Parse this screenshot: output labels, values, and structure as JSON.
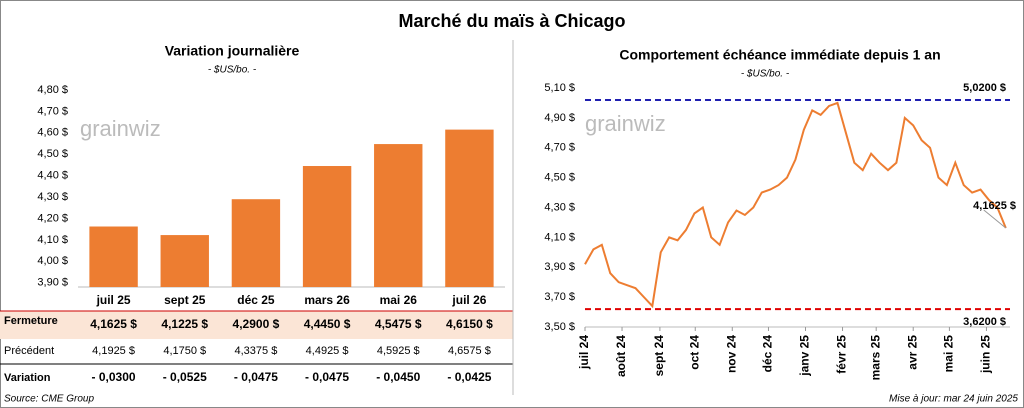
{
  "title": "Marché du maïs à Chicago",
  "chart_data": [
    {
      "type": "bar",
      "title": "Variation journalière",
      "subtitle": "- $US/bo. -",
      "categories": [
        "juil 25",
        "sept 25",
        "déc 25",
        "mars 26",
        "mai 26",
        "juil 26"
      ],
      "values": [
        4.1625,
        4.1225,
        4.29,
        4.445,
        4.5475,
        4.615
      ],
      "value_labels": [
        "4,1625  $",
        "4,1225  $",
        "4,2900  $",
        "4,4450  $",
        "4,5475  $",
        "4,6150  $"
      ],
      "color": "#ed7d31",
      "ylim": [
        3.88,
        4.8
      ],
      "yticks": [
        {
          "value": 3.9,
          "label": "3,90 $"
        },
        {
          "value": 4.0,
          "label": "4,00 $"
        },
        {
          "value": 4.1,
          "label": "4,10 $"
        },
        {
          "value": 4.2,
          "label": "4,20 $"
        },
        {
          "value": 4.3,
          "label": "4,30 $"
        },
        {
          "value": 4.4,
          "label": "4,40 $"
        },
        {
          "value": 4.5,
          "label": "4,50 $"
        },
        {
          "value": 4.6,
          "label": "4,60 $"
        },
        {
          "value": 4.7,
          "label": "4,70 $"
        },
        {
          "value": 4.8,
          "label": "4,80 $"
        }
      ]
    },
    {
      "type": "line",
      "title": "Comportement échéance immédiate depuis 1 an",
      "subtitle": "- $US/bo. -",
      "x": [
        0,
        1,
        2,
        3,
        4,
        5,
        6,
        7,
        8,
        9,
        10,
        11,
        12,
        13,
        14,
        15,
        16,
        17,
        18,
        19,
        20,
        21,
        22,
        23,
        24,
        25,
        26,
        27,
        28,
        29,
        30,
        31,
        32,
        33,
        34,
        35,
        36,
        37,
        38,
        39,
        40,
        41,
        42,
        43,
        44,
        45,
        46,
        47,
        48,
        49,
        50
      ],
      "values": [
        3.92,
        4.02,
        4.05,
        3.86,
        3.8,
        3.78,
        3.76,
        3.7,
        3.64,
        4.0,
        4.1,
        4.08,
        4.15,
        4.26,
        4.3,
        4.1,
        4.05,
        4.2,
        4.28,
        4.25,
        4.3,
        4.4,
        4.42,
        4.45,
        4.5,
        4.62,
        4.82,
        4.95,
        4.92,
        4.98,
        5.0,
        4.8,
        4.6,
        4.55,
        4.66,
        4.6,
        4.55,
        4.6,
        4.9,
        4.85,
        4.75,
        4.7,
        4.5,
        4.45,
        4.6,
        4.45,
        4.4,
        4.42,
        4.35,
        4.3,
        4.1625
      ],
      "color": "#ed7d31",
      "xlim": [
        0,
        50.5
      ],
      "ylim": [
        3.5,
        5.1
      ],
      "xticks": [
        {
          "value": 0,
          "label": "juil 24"
        },
        {
          "value": 4.4,
          "label": "août 24"
        },
        {
          "value": 8.9,
          "label": "sept 24"
        },
        {
          "value": 13.1,
          "label": "oct 24"
        },
        {
          "value": 17.5,
          "label": "nov 24"
        },
        {
          "value": 21.8,
          "label": "déc 24"
        },
        {
          "value": 26.2,
          "label": "janv 25"
        },
        {
          "value": 30.6,
          "label": "févr 25"
        },
        {
          "value": 34.6,
          "label": "mars 25"
        },
        {
          "value": 39,
          "label": "avr 25"
        },
        {
          "value": 43.3,
          "label": "mai 25"
        },
        {
          "value": 47.7,
          "label": "juin 25"
        }
      ],
      "yticks": [
        {
          "value": 3.5,
          "label": "3,50 $"
        },
        {
          "value": 3.7,
          "label": "3,70 $"
        },
        {
          "value": 3.9,
          "label": "3,90 $"
        },
        {
          "value": 4.1,
          "label": "4,10 $"
        },
        {
          "value": 4.3,
          "label": "4,30 $"
        },
        {
          "value": 4.5,
          "label": "4,50 $"
        },
        {
          "value": 4.7,
          "label": "4,70 $"
        },
        {
          "value": 4.9,
          "label": "4,90 $"
        },
        {
          "value": 5.1,
          "label": "5,10 $"
        }
      ],
      "reference_lines": [
        {
          "value": 5.02,
          "label": "5,0200 $",
          "color": "#2020b0"
        },
        {
          "value": 3.62,
          "label": "3,6200 $",
          "color": "#e00000"
        }
      ],
      "last_label": "4,1625 $"
    }
  ],
  "table": {
    "row_labels": [
      "Fermeture",
      "Précédent",
      "Variation"
    ],
    "previous": [
      "4,1925  $",
      "4,1750  $",
      "4,3375  $",
      "4,4925  $",
      "4,5925  $",
      "4,6575  $"
    ],
    "change": [
      "- 0,0300",
      "- 0,0525",
      "- 0,0475",
      "- 0,0475",
      "- 0,0450",
      "- 0,0425"
    ]
  },
  "watermark": "grainwiz",
  "source": "Source: CME Group",
  "updated": "Mise à jour: mar 24 juin 2025"
}
